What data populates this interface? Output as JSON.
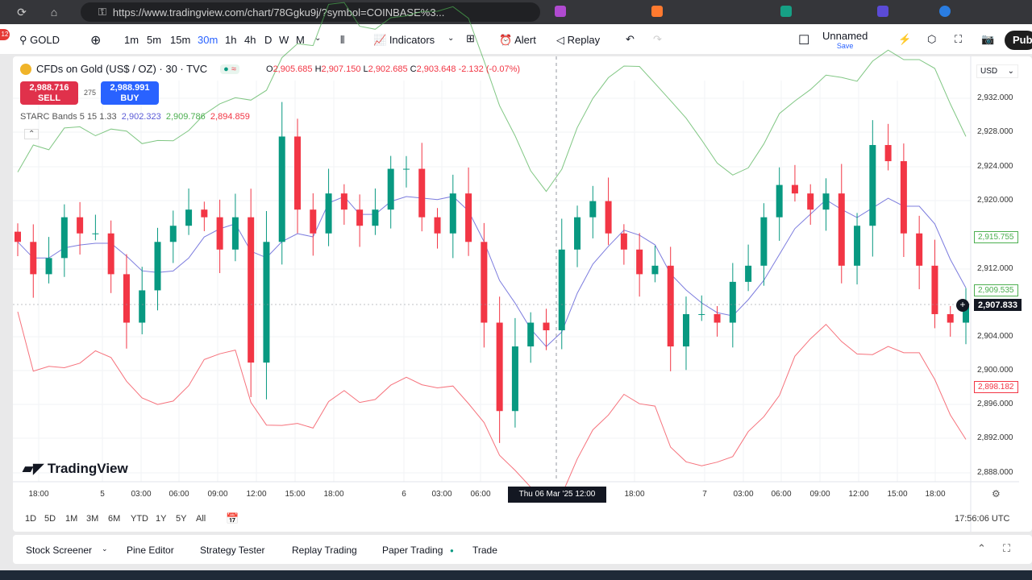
{
  "browser": {
    "url": "https://www.tradingview.com/chart/78Ggku9j/?symbol=COINBASE%3..."
  },
  "toolbar": {
    "notif_count": "12",
    "symbol": "GOLD",
    "intervals": [
      "1m",
      "5m",
      "15m",
      "30m",
      "1h",
      "4h",
      "D",
      "W",
      "M"
    ],
    "active_interval": "30m",
    "indicators": "Indicators",
    "alert": "Alert",
    "replay": "Replay",
    "layout_name": "Unnamed",
    "layout_save": "Save",
    "publish": "Pub"
  },
  "legend": {
    "title": "CFDs on Gold (US$ / OZ) · 30 · TVC",
    "ohlc": {
      "o_label": "O",
      "o": "2,905.685",
      "h_label": "H",
      "h": "2,907.150",
      "l_label": "L",
      "l": "2,902.685",
      "c_label": "C",
      "c": "2,903.648",
      "change": "-2.132 (-0.07%)"
    },
    "sell_price": "2,988.716",
    "sell_label": "SELL",
    "spread": "275",
    "buy_price": "2,988.991",
    "buy_label": "BUY",
    "indicator": "STARC Bands 5 15 1.33",
    "ind_mid": "2,902.323",
    "ind_up": "2,909.786",
    "ind_low": "2,894.859"
  },
  "price_axis": {
    "currency": "USD",
    "ticks": [
      "2,932.000",
      "2,928.000",
      "2,924.000",
      "2,920.000",
      "2,912.000",
      "2,904.000",
      "2,900.000",
      "2,896.000",
      "2,892.000",
      "2,888.000"
    ],
    "upper_label": "2,915.755",
    "mid_label": "2,909.535",
    "last_price": "2,907.833",
    "lower_label": "2,898.182"
  },
  "time_axis": {
    "labels": [
      "18:00",
      "5",
      "03:00",
      "06:00",
      "09:00",
      "12:00",
      "15:00",
      "18:00",
      "6",
      "03:00",
      "06:00",
      "18:00",
      "7",
      "03:00",
      "06:00",
      "09:00",
      "12:00",
      "15:00",
      "18:00"
    ],
    "crosshair_label": "Thu 06 Mar '25   12:00"
  },
  "ranges": [
    "1D",
    "5D",
    "1M",
    "3M",
    "6M",
    "YTD",
    "1Y",
    "5Y",
    "All"
  ],
  "clock": "17:56:06 UTC",
  "watermark": "TradingView",
  "bottom_tabs": [
    "Stock Screener",
    "Pine Editor",
    "Strategy Tester",
    "Replay Trading",
    "Paper Trading",
    "Trade"
  ],
  "colors": {
    "up": "#089981",
    "down": "#f23645",
    "band_upper": "#4caf50",
    "band_mid": "#5b5bd6",
    "band_lower": "#f23645",
    "accent": "#2962ff"
  },
  "chart_data": {
    "type": "candlestick",
    "indicator": {
      "name": "STARC Bands",
      "ma_period": 5,
      "atr_period": 15,
      "multiplier": 1.33
    },
    "ylim": [
      2886,
      2934
    ],
    "closes": [
      2915.1,
      2911.3,
      2913.2,
      2918.0,
      2916.1,
      2916.1,
      2911.3,
      2905.6,
      2909.4,
      2915.1,
      2917.0,
      2918.9,
      2918.0,
      2914.2,
      2918.0,
      2900.9,
      2915.1,
      2927.5,
      2918.9,
      2916.1,
      2920.8,
      2918.9,
      2917.0,
      2918.9,
      2923.7,
      2923.7,
      2918.0,
      2916.1,
      2920.8,
      2915.1,
      2905.6,
      2895.2,
      2902.8,
      2905.6,
      2904.7,
      2914.2,
      2918.0,
      2919.9,
      2916.1,
      2914.2,
      2911.3,
      2912.3,
      2902.8,
      2906.6,
      2906.6,
      2905.6,
      2910.4,
      2912.3,
      2918.0,
      2921.8,
      2920.8,
      2918.9,
      2920.8,
      2912.3,
      2917.0,
      2926.5,
      2924.6,
      2916.1,
      2912.3,
      2906.6,
      2905.6,
      2907.833
    ]
  }
}
